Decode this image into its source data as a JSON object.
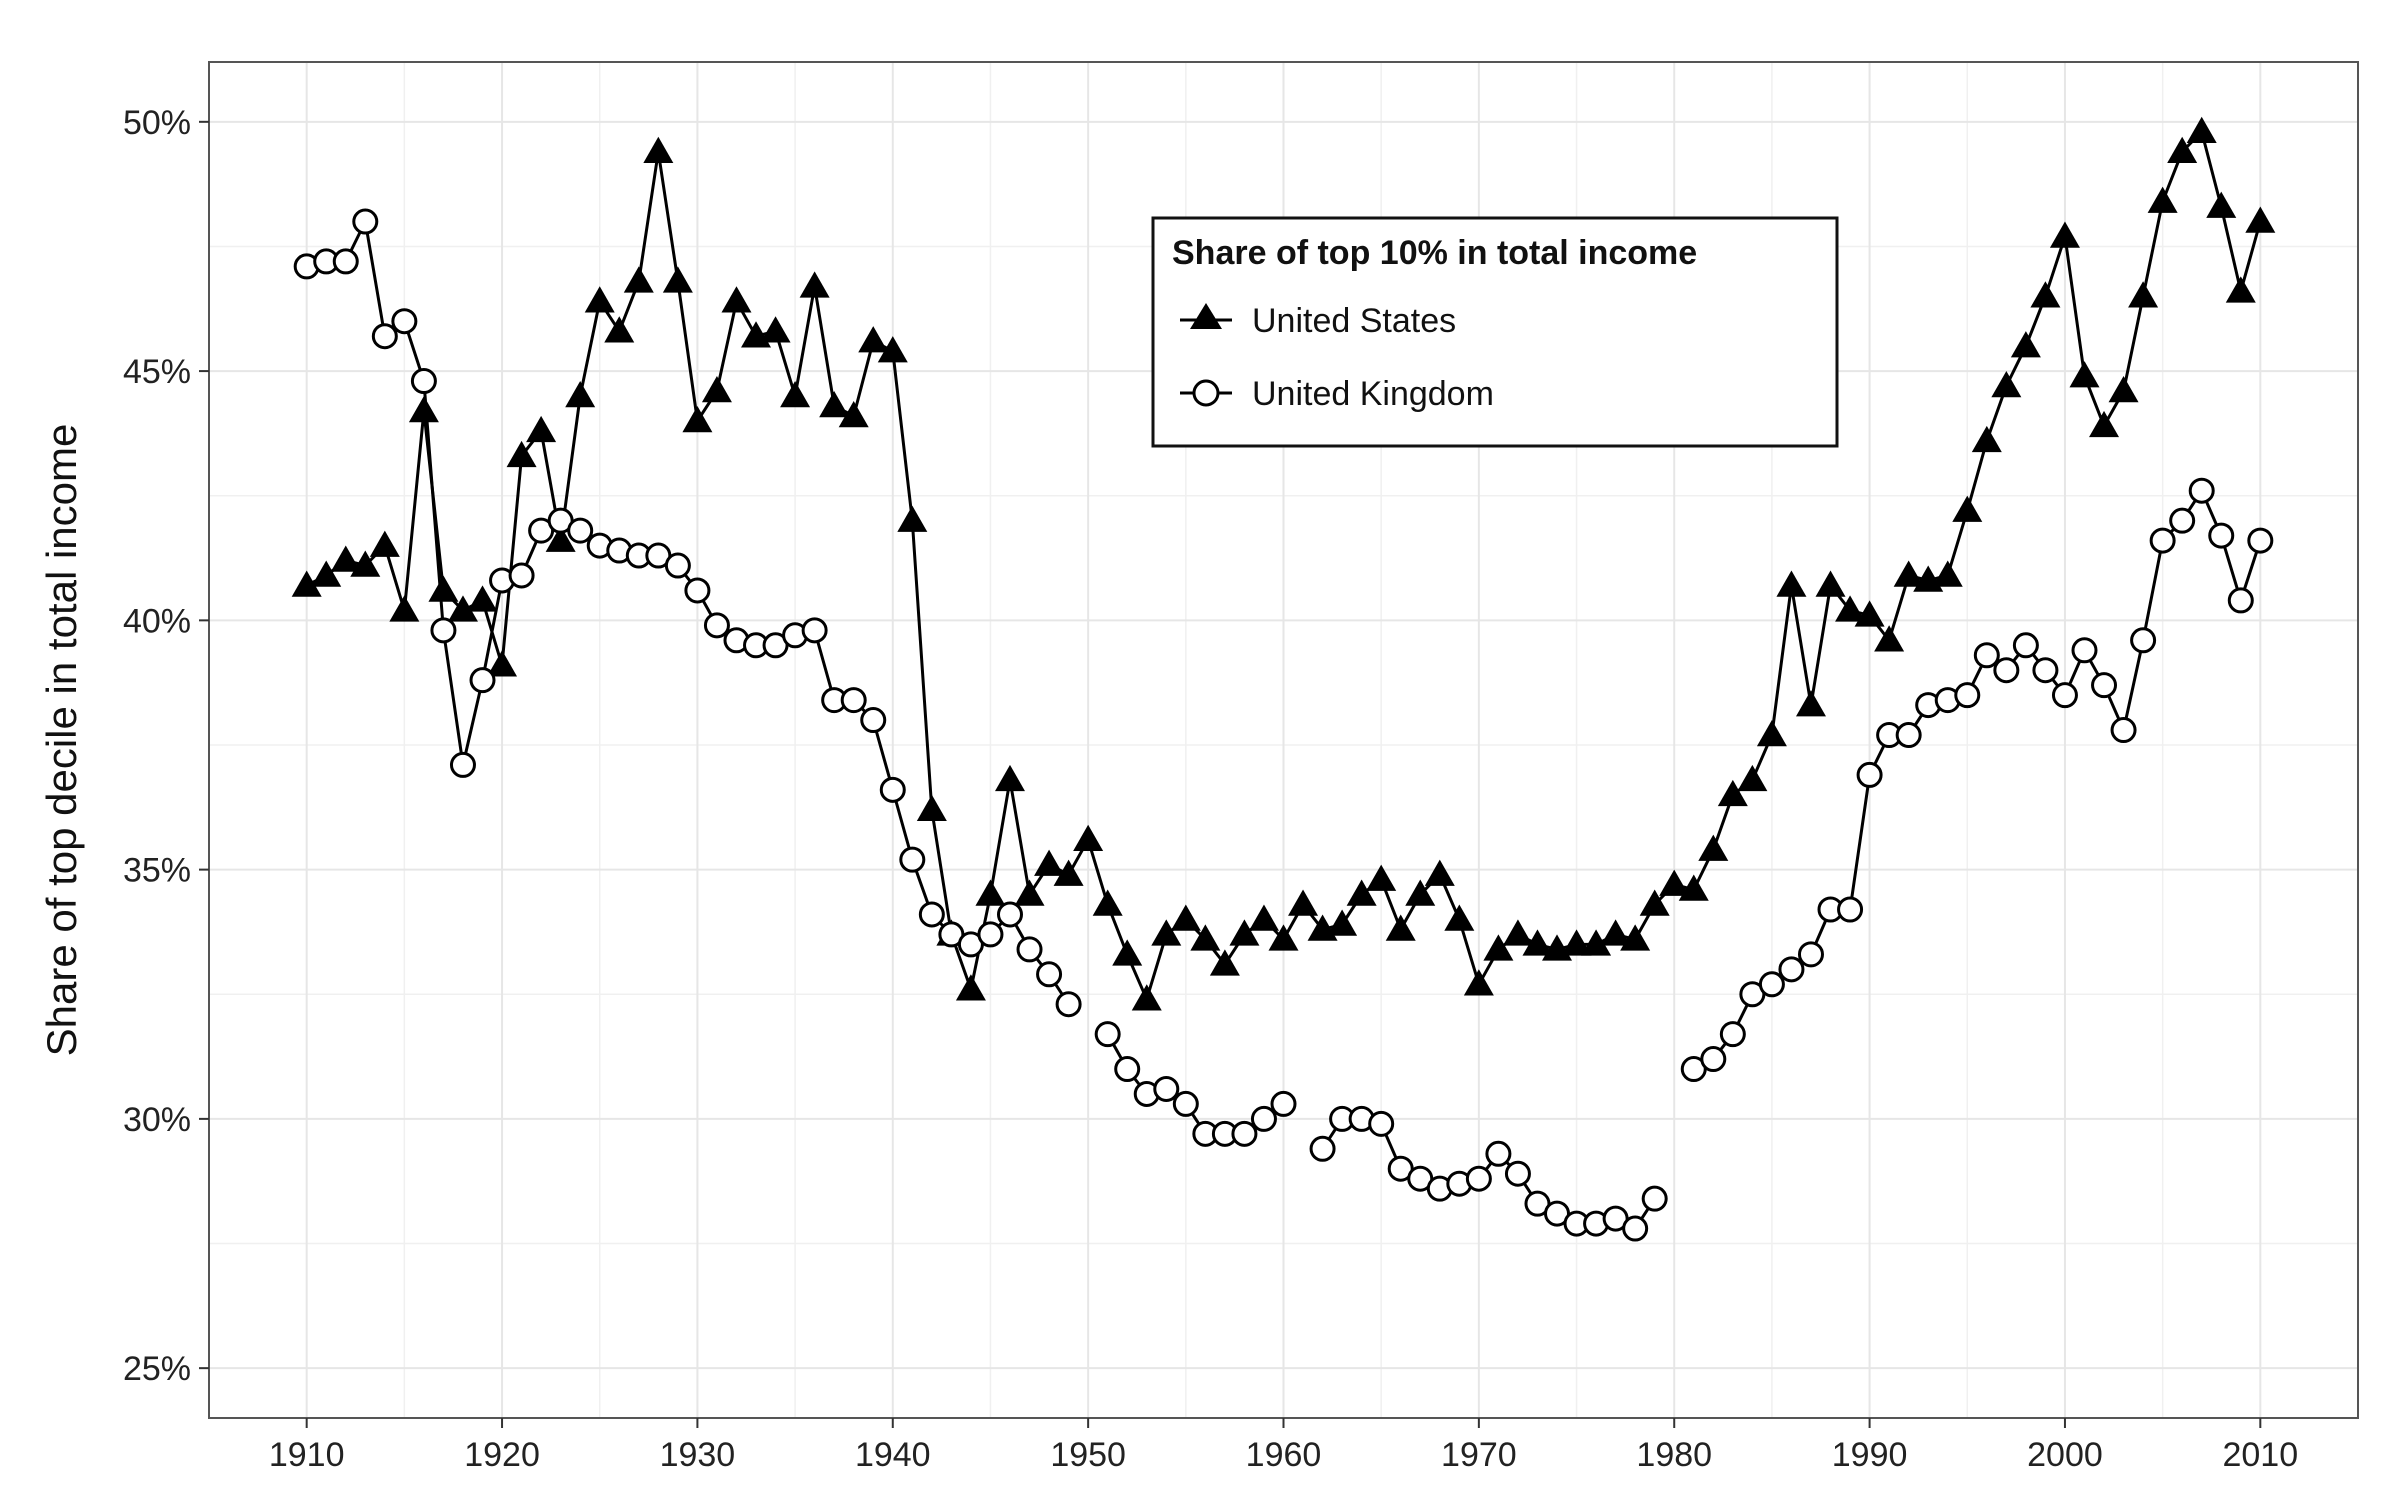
{
  "chart_data": {
    "type": "line",
    "title": "",
    "xlabel": "",
    "ylabel": "Share of top decile in total income",
    "xlim": [
      1905,
      2015
    ],
    "ylim": [
      0.24,
      0.512
    ],
    "xticks": [
      1910,
      1920,
      1930,
      1940,
      1950,
      1960,
      1970,
      1980,
      1990,
      2000,
      2010
    ],
    "xtick_labels": [
      "1910",
      "1920",
      "1930",
      "1940",
      "1950",
      "1960",
      "1970",
      "1980",
      "1990",
      "2000",
      "2010"
    ],
    "yticks": [
      0.25,
      0.3,
      0.35,
      0.4,
      0.45,
      0.5
    ],
    "ytick_labels": [
      "25%",
      "30%",
      "35%",
      "40%",
      "45%",
      "50%"
    ],
    "grid": true,
    "legend": {
      "title": "Share of top 10% in total income",
      "position": "top-center"
    },
    "colors": {
      "line": "#000000",
      "grid": "#e6e6e6",
      "frame": "#555555"
    },
    "series": [
      {
        "name": "United States",
        "marker": "triangle",
        "x": [
          1910,
          1911,
          1912,
          1913,
          1914,
          1915,
          1916,
          1917,
          1918,
          1919,
          1920,
          1921,
          1922,
          1923,
          1924,
          1925,
          1926,
          1927,
          1928,
          1929,
          1930,
          1931,
          1932,
          1933,
          1934,
          1935,
          1936,
          1937,
          1938,
          1939,
          1940,
          1941,
          1942,
          1943,
          1944,
          1945,
          1946,
          1947,
          1948,
          1949,
          1950,
          1951,
          1952,
          1953,
          1954,
          1955,
          1956,
          1957,
          1958,
          1959,
          1960,
          1961,
          1962,
          1963,
          1964,
          1965,
          1966,
          1967,
          1968,
          1969,
          1970,
          1971,
          1972,
          1973,
          1974,
          1975,
          1976,
          1977,
          1978,
          1979,
          1980,
          1981,
          1982,
          1983,
          1984,
          1985,
          1986,
          1987,
          1988,
          1989,
          1990,
          1991,
          1992,
          1993,
          1994,
          1995,
          1996,
          1997,
          1998,
          1999,
          2000,
          2001,
          2002,
          2003,
          2004,
          2005,
          2006,
          2007,
          2008,
          2009,
          2010
        ],
        "y": [
          0.407,
          0.409,
          0.412,
          0.411,
          0.415,
          0.402,
          0.442,
          0.406,
          0.402,
          0.404,
          0.391,
          0.433,
          0.438,
          0.416,
          0.445,
          0.464,
          0.458,
          0.468,
          0.494,
          0.468,
          0.44,
          0.446,
          0.464,
          0.457,
          0.458,
          0.445,
          0.467,
          0.443,
          0.441,
          0.456,
          0.454,
          0.42,
          0.362,
          0.337,
          0.326,
          0.345,
          0.368,
          0.345,
          0.351,
          0.349,
          0.356,
          0.343,
          0.333,
          0.324,
          0.337,
          0.34,
          0.336,
          0.331,
          0.337,
          0.34,
          0.336,
          0.343,
          0.338,
          0.339,
          0.345,
          0.348,
          0.338,
          0.345,
          0.349,
          0.34,
          0.327,
          0.334,
          0.337,
          0.335,
          0.334,
          0.335,
          0.335,
          0.337,
          0.336,
          0.343,
          0.347,
          0.346,
          0.354,
          0.365,
          0.368,
          0.377,
          0.407,
          0.383,
          0.407,
          0.402,
          0.401,
          0.396,
          0.409,
          0.408,
          0.409,
          0.422,
          0.436,
          0.447,
          0.455,
          0.465,
          0.477,
          0.449,
          0.439,
          0.446,
          0.465,
          0.484,
          0.494,
          0.498,
          0.483,
          0.466,
          0.48
        ]
      },
      {
        "name": "United Kingdom",
        "marker": "circle",
        "x": [
          1910,
          1911,
          1912,
          1913,
          1914,
          1915,
          1916,
          1917,
          1918,
          1919,
          1920,
          1921,
          1922,
          1923,
          1924,
          1925,
          1926,
          1927,
          1928,
          1929,
          1930,
          1931,
          1932,
          1933,
          1934,
          1935,
          1936,
          1937,
          1938,
          1939,
          1940,
          1941,
          1942,
          1943,
          1944,
          1945,
          1946,
          1947,
          1948,
          1949,
          1950,
          1951,
          1952,
          1953,
          1954,
          1955,
          1956,
          1957,
          1958,
          1959,
          1960,
          1961,
          1962,
          1963,
          1964,
          1965,
          1966,
          1967,
          1968,
          1969,
          1970,
          1971,
          1972,
          1973,
          1974,
          1975,
          1976,
          1977,
          1978,
          1979,
          1980,
          1981,
          1982,
          1983,
          1984,
          1985,
          1986,
          1987,
          1988,
          1989,
          1990,
          1991,
          1992,
          1993,
          1994,
          1995,
          1996,
          1997,
          1998,
          1999,
          2000,
          2001,
          2002,
          2003,
          2004,
          2005,
          2006,
          2007,
          2008,
          2009,
          2010
        ],
        "y": [
          0.471,
          0.472,
          0.472,
          0.48,
          0.457,
          0.46,
          0.448,
          0.398,
          0.371,
          0.388,
          0.408,
          0.409,
          0.418,
          0.42,
          0.418,
          0.415,
          0.414,
          0.413,
          0.413,
          0.411,
          0.406,
          0.399,
          0.396,
          0.395,
          0.395,
          0.397,
          0.398,
          0.384,
          0.384,
          0.38,
          0.366,
          0.352,
          0.341,
          0.337,
          0.335,
          0.337,
          0.341,
          0.334,
          0.329,
          0.323,
          null,
          0.317,
          0.31,
          0.305,
          0.306,
          0.303,
          0.297,
          0.297,
          0.297,
          0.3,
          0.303,
          null,
          0.294,
          0.3,
          0.3,
          0.299,
          0.29,
          0.288,
          0.286,
          0.287,
          0.288,
          0.293,
          0.289,
          0.283,
          0.281,
          0.279,
          0.279,
          0.28,
          0.278,
          0.284,
          null,
          0.31,
          0.312,
          0.317,
          0.325,
          0.327,
          0.33,
          0.333,
          0.342,
          0.342,
          0.369,
          0.377,
          0.377,
          0.383,
          0.384,
          0.385,
          0.393,
          0.39,
          0.395,
          0.39,
          0.385,
          0.394,
          0.387,
          0.378,
          0.396,
          0.416,
          0.42,
          0.426,
          0.417,
          0.404,
          0.416
        ]
      }
    ]
  }
}
